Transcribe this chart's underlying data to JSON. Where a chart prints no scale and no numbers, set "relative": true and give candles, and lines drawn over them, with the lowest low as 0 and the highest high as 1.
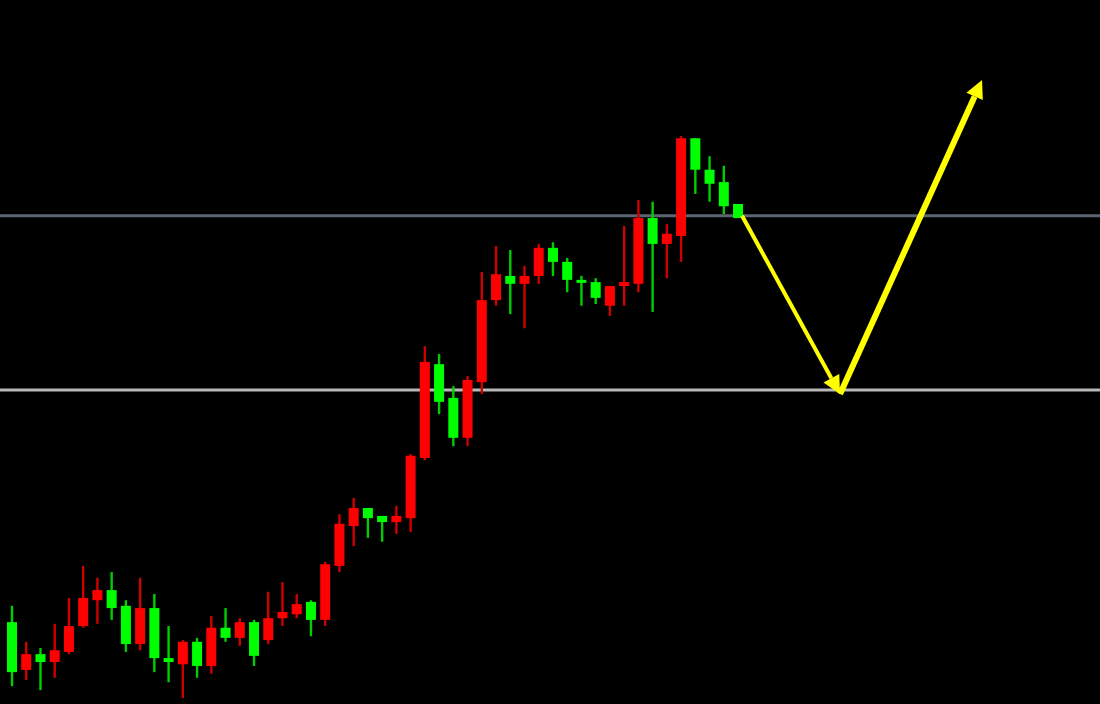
{
  "chart_data": {
    "type": "candlestick",
    "relative": true,
    "categories": [
      null,
      null,
      null,
      null,
      null,
      null,
      null,
      null,
      null,
      null,
      null,
      null,
      null,
      null,
      null,
      null,
      null,
      null,
      null,
      null,
      null,
      null,
      null,
      null,
      null,
      null,
      null,
      null,
      null,
      null,
      null,
      null,
      null,
      null,
      null,
      null,
      null,
      null,
      null,
      null,
      null,
      null,
      null,
      null,
      null,
      null,
      null,
      null,
      null,
      null,
      null,
      null
    ],
    "ohlc": [
      [
        0.135,
        0.164,
        0.021,
        0.046
      ],
      [
        0.05,
        0.1,
        0.032,
        0.078
      ],
      [
        0.078,
        0.089,
        0.014,
        0.064
      ],
      [
        0.064,
        0.132,
        0.036,
        0.085
      ],
      [
        0.082,
        0.178,
        0.078,
        0.128
      ],
      [
        0.128,
        0.235,
        0.125,
        0.178
      ],
      [
        0.174,
        0.214,
        0.132,
        0.192
      ],
      [
        0.192,
        0.224,
        0.139,
        0.16
      ],
      [
        0.164,
        0.174,
        0.082,
        0.096
      ],
      [
        0.096,
        0.214,
        0.085,
        0.16
      ],
      [
        0.16,
        0.185,
        0.046,
        0.071
      ],
      [
        0.071,
        0.128,
        0.028,
        0.064
      ],
      [
        0.06,
        0.103,
        0,
        0.1
      ],
      [
        0.1,
        0.107,
        0.036,
        0.057
      ],
      [
        0.057,
        0.146,
        0.043,
        0.125
      ],
      [
        0.125,
        0.16,
        0.1,
        0.107
      ],
      [
        0.107,
        0.142,
        0.093,
        0.135
      ],
      [
        0.135,
        0.139,
        0.057,
        0.075
      ],
      [
        0.103,
        0.189,
        0.096,
        0.142
      ],
      [
        0.142,
        0.206,
        0.128,
        0.153
      ],
      [
        0.149,
        0.185,
        0.142,
        0.167
      ],
      [
        0.171,
        0.174,
        0.11,
        0.139
      ],
      [
        0.139,
        0.242,
        0.128,
        0.238
      ],
      [
        0.235,
        0.327,
        0.224,
        0.31
      ],
      [
        0.306,
        0.356,
        0.27,
        0.338
      ],
      [
        0.338,
        0.338,
        0.285,
        0.32
      ],
      [
        0.324,
        0.324,
        0.278,
        0.313
      ],
      [
        0.313,
        0.342,
        0.292,
        0.324
      ],
      [
        0.32,
        0.434,
        0.295,
        0.431
      ],
      [
        0.427,
        0.626,
        0.423,
        0.598
      ],
      [
        0.594,
        0.612,
        0.505,
        0.527
      ],
      [
        0.534,
        0.555,
        0.448,
        0.463
      ],
      [
        0.463,
        0.573,
        0.448,
        0.566
      ],
      [
        0.562,
        0.758,
        0.541,
        0.708
      ],
      [
        0.708,
        0.804,
        0.698,
        0.754
      ],
      [
        0.751,
        0.797,
        0.683,
        0.737
      ],
      [
        0.737,
        0.769,
        0.658,
        0.751
      ],
      [
        0.751,
        0.808,
        0.737,
        0.801
      ],
      [
        0.801,
        0.811,
        0.751,
        0.776
      ],
      [
        0.776,
        0.783,
        0.722,
        0.744
      ],
      [
        0.744,
        0.751,
        0.698,
        0.74
      ],
      [
        0.74,
        0.747,
        0.701,
        0.712
      ],
      [
        0.698,
        0.733,
        0.68,
        0.733
      ],
      [
        0.733,
        0.84,
        0.698,
        0.74
      ],
      [
        0.737,
        0.886,
        0.722,
        0.854
      ],
      [
        0.854,
        0.883,
        0.687,
        0.808
      ],
      [
        0.808,
        0.843,
        0.747,
        0.826
      ],
      [
        0.822,
        1,
        0.776,
        0.996
      ],
      [
        0.996,
        0.996,
        0.897,
        0.94
      ],
      [
        0.94,
        0.964,
        0.883,
        0.915
      ],
      [
        0.918,
        0.947,
        0.861,
        0.875
      ],
      [
        0.879,
        0.879,
        0.854,
        0.854
      ]
    ],
    "colors": [
      "#00ff00",
      "#ff0000",
      "#00ff00",
      "#ff0000",
      "#ff0000",
      "#ff0000",
      "#ff0000",
      "#00ff00",
      "#00ff00",
      "#ff0000",
      "#00ff00",
      "#00ff00",
      "#ff0000",
      "#00ff00",
      "#ff0000",
      "#00ff00",
      "#ff0000",
      "#00ff00",
      "#ff0000",
      "#ff0000",
      "#ff0000",
      "#00ff00",
      "#ff0000",
      "#ff0000",
      "#ff0000",
      "#00ff00",
      "#00ff00",
      "#ff0000",
      "#ff0000",
      "#ff0000",
      "#00ff00",
      "#00ff00",
      "#ff0000",
      "#ff0000",
      "#ff0000",
      "#00ff00",
      "#ff0000",
      "#ff0000",
      "#00ff00",
      "#00ff00",
      "#00ff00",
      "#00ff00",
      "#ff0000",
      "#ff0000",
      "#ff0000",
      "#00ff00",
      "#ff0000",
      "#ff0000",
      "#00ff00",
      "#00ff00",
      "#00ff00",
      "#00ff00"
    ],
    "ref_lines": [
      {
        "axis": "y",
        "value": 0.858,
        "color": "#5c6472"
      },
      {
        "axis": "y",
        "value": 0.548,
        "color": "#b8b8b8"
      }
    ]
  }
}
